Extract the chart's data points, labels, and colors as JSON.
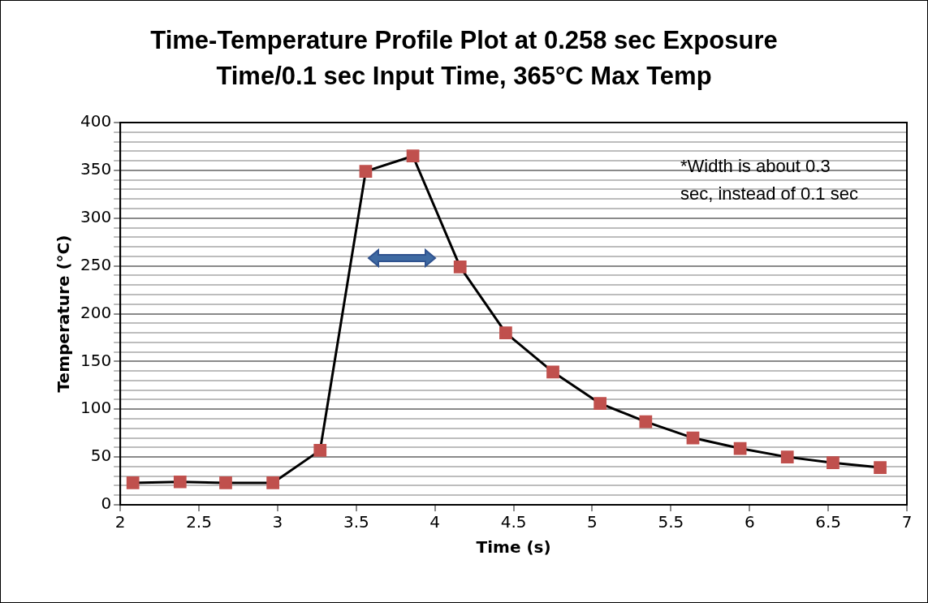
{
  "chart_data": {
    "type": "line",
    "title": "Time-Temperature Profile Plot at 0.258 sec Exposure Time/0.1 sec Input Time, 365°C Max Temp",
    "xlabel": "Time (s)",
    "ylabel": "Temperature (°C)",
    "x": [
      2.08,
      2.38,
      2.67,
      2.97,
      3.27,
      3.56,
      3.86,
      4.16,
      4.45,
      4.75,
      5.05,
      5.34,
      5.64,
      5.94,
      6.24,
      6.53,
      6.83
    ],
    "series": [
      {
        "color": "#c0504d",
        "values": [
          23,
          24,
          23,
          23,
          57,
          349,
          365,
          249,
          180,
          139,
          106,
          87,
          70,
          59,
          50,
          44,
          39
        ]
      }
    ],
    "xlim": [
      2,
      7
    ],
    "xticks": [
      2,
      2.5,
      3,
      3.5,
      4,
      4.5,
      5,
      5.5,
      6,
      6.5,
      7
    ],
    "ylim": [
      0,
      400
    ],
    "yticks": [
      0,
      {
        "value": 10,
        "label": null
      },
      {
        "value": 20,
        "label": null
      },
      {
        "value": 30,
        "label": null
      },
      {
        "value": 40,
        "label": null
      },
      50,
      {
        "value": 60,
        "label": null
      },
      {
        "value": 70,
        "label": null
      },
      {
        "value": 80,
        "label": null
      },
      {
        "value": 90,
        "label": null
      },
      100,
      {
        "value": 110,
        "label": null
      },
      {
        "value": 120,
        "label": null
      },
      {
        "value": 130,
        "label": null
      },
      {
        "value": 140,
        "label": null
      },
      150,
      {
        "value": 160,
        "label": null
      },
      {
        "value": 170,
        "label": null
      },
      {
        "value": 180,
        "label": null
      },
      {
        "value": 190,
        "label": null
      },
      200,
      {
        "value": 210,
        "label": null
      },
      {
        "value": 220,
        "label": null
      },
      {
        "value": 230,
        "label": null
      },
      {
        "value": 240,
        "label": null
      },
      250,
      {
        "value": 260,
        "label": null
      },
      {
        "value": 270,
        "label": null
      },
      {
        "value": 280,
        "label": null
      },
      {
        "value": 290,
        "label": null
      },
      300,
      {
        "value": 310,
        "label": null
      },
      {
        "value": 320,
        "label": null
      },
      {
        "value": 330,
        "label": null
      },
      {
        "value": 340,
        "label": null
      },
      350,
      {
        "value": 360,
        "label": null
      },
      {
        "value": 370,
        "label": null
      },
      {
        "value": 380,
        "label": null
      },
      {
        "value": 390,
        "label": null
      },
      400
    ],
    "annotations": [
      "*Width is about 0.3 sec, instead of 0.1 sec"
    ],
    "grid": "y",
    "legend": false,
    "marker": "square",
    "line_style": "solid"
  }
}
